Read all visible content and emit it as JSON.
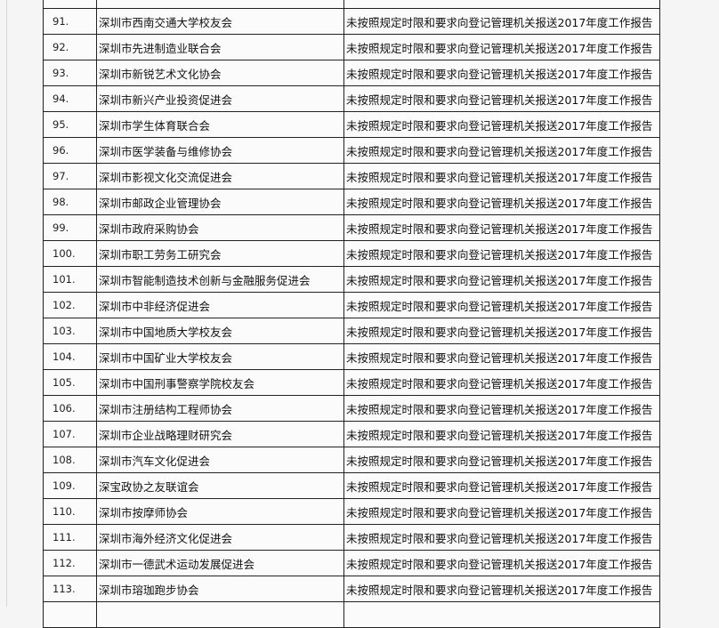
{
  "rows": [
    {
      "num": "91.",
      "name": "深圳市西南交通大学校友会",
      "reason": "未按照规定时限和要求向登记管理机关报送2017年度工作报告"
    },
    {
      "num": "92.",
      "name": "深圳市先进制造业联合会",
      "reason": "未按照规定时限和要求向登记管理机关报送2017年度工作报告"
    },
    {
      "num": "93.",
      "name": "深圳市新锐艺术文化协会",
      "reason": "未按照规定时限和要求向登记管理机关报送2017年度工作报告"
    },
    {
      "num": "94.",
      "name": "深圳市新兴产业投资促进会",
      "reason": "未按照规定时限和要求向登记管理机关报送2017年度工作报告"
    },
    {
      "num": "95.",
      "name": "深圳市学生体育联合会",
      "reason": "未按照规定时限和要求向登记管理机关报送2017年度工作报告"
    },
    {
      "num": "96.",
      "name": "深圳市医学装备与维修协会",
      "reason": "未按照规定时限和要求向登记管理机关报送2017年度工作报告"
    },
    {
      "num": "97.",
      "name": "深圳市影视文化交流促进会",
      "reason": "未按照规定时限和要求向登记管理机关报送2017年度工作报告"
    },
    {
      "num": "98.",
      "name": "深圳市邮政企业管理协会",
      "reason": "未按照规定时限和要求向登记管理机关报送2017年度工作报告"
    },
    {
      "num": "99.",
      "name": "深圳市政府采购协会",
      "reason": "未按照规定时限和要求向登记管理机关报送2017年度工作报告"
    },
    {
      "num": "100.",
      "name": "深圳市职工劳务工研究会",
      "reason": "未按照规定时限和要求向登记管理机关报送2017年度工作报告"
    },
    {
      "num": "101.",
      "name": "深圳市智能制造技术创新与金融服务促进会",
      "reason": "未按照规定时限和要求向登记管理机关报送2017年度工作报告"
    },
    {
      "num": "102.",
      "name": "深圳市中非经济促进会",
      "reason": "未按照规定时限和要求向登记管理机关报送2017年度工作报告"
    },
    {
      "num": "103.",
      "name": "深圳市中国地质大学校友会",
      "reason": "未按照规定时限和要求向登记管理机关报送2017年度工作报告"
    },
    {
      "num": "104.",
      "name": "深圳市中国矿业大学校友会",
      "reason": "未按照规定时限和要求向登记管理机关报送2017年度工作报告"
    },
    {
      "num": "105.",
      "name": "深圳市中国刑事警察学院校友会",
      "reason": "未按照规定时限和要求向登记管理机关报送2017年度工作报告"
    },
    {
      "num": "106.",
      "name": "深圳市注册结构工程师协会",
      "reason": "未按照规定时限和要求向登记管理机关报送2017年度工作报告"
    },
    {
      "num": "107.",
      "name": "深圳市企业战略理财研究会",
      "reason": "未按照规定时限和要求向登记管理机关报送2017年度工作报告"
    },
    {
      "num": "108.",
      "name": "深圳市汽车文化促进会",
      "reason": "未按照规定时限和要求向登记管理机关报送2017年度工作报告"
    },
    {
      "num": "109.",
      "name": "深宝政协之友联谊会",
      "reason": "未按照规定时限和要求向登记管理机关报送2017年度工作报告"
    },
    {
      "num": "110.",
      "name": "深圳市按摩师协会",
      "reason": "未按照规定时限和要求向登记管理机关报送2017年度工作报告"
    },
    {
      "num": "111.",
      "name": "深圳市海外经济文化促进会",
      "reason": "未按照规定时限和要求向登记管理机关报送2017年度工作报告"
    },
    {
      "num": "112.",
      "name": "深圳市一德武术运动发展促进会",
      "reason": "未按照规定时限和要求向登记管理机关报送2017年度工作报告"
    },
    {
      "num": "113.",
      "name": "深圳市瑢珈跑步协会",
      "reason": "未按照规定时限和要求向登记管理机关报送2017年度工作报告"
    }
  ]
}
